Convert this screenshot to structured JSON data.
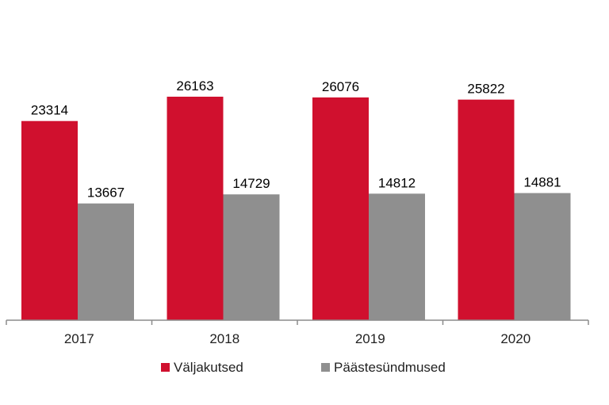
{
  "chart_data": {
    "type": "bar",
    "categories": [
      "2017",
      "2018",
      "2019",
      "2020"
    ],
    "series": [
      {
        "name": "Väljakutsed",
        "values": [
          23314,
          26163,
          26076,
          25822
        ],
        "color": "#d0102e"
      },
      {
        "name": "Päästesündmused",
        "values": [
          13667,
          14729,
          14812,
          14881
        ],
        "color": "#8f8f8f"
      }
    ],
    "title": "",
    "xlabel": "",
    "ylabel": "",
    "ylim": [
      0,
      30000
    ],
    "grid": false,
    "y_axis_visible": false,
    "data_labels": true,
    "legend_position": "bottom"
  }
}
